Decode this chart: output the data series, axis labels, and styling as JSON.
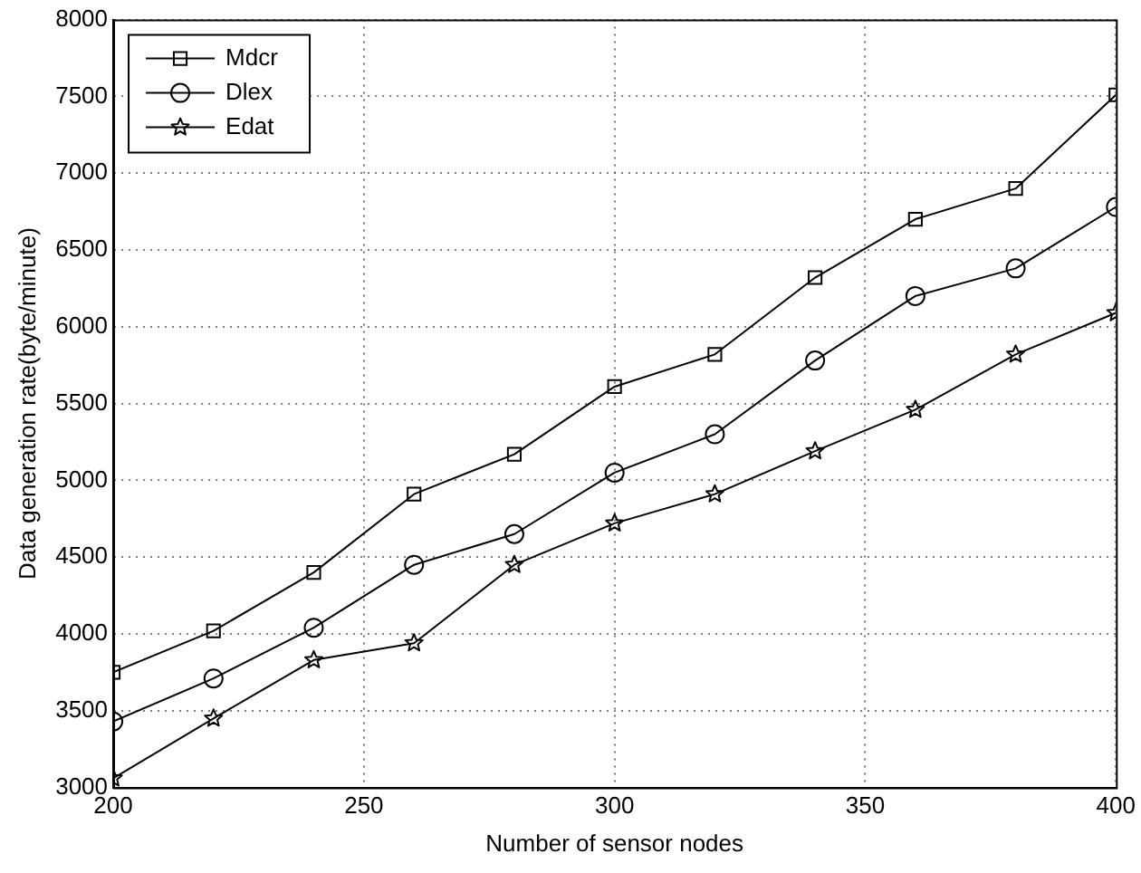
{
  "chart_data": {
    "type": "line",
    "xlabel": "Number of sensor nodes",
    "ylabel": "Data generation rate(byte/minute)",
    "x": [
      200,
      220,
      240,
      260,
      280,
      300,
      320,
      340,
      360,
      380,
      400
    ],
    "xlim": [
      200,
      400
    ],
    "xticks": [
      200,
      250,
      300,
      350,
      400
    ],
    "ylim": [
      3000,
      8000
    ],
    "yticks": [
      3000,
      3500,
      4000,
      4500,
      5000,
      5500,
      6000,
      6500,
      7000,
      7500,
      8000
    ],
    "grid": true,
    "legend": "top left",
    "line_style": "solid",
    "series": [
      {
        "name": "Mdcr",
        "color": "#000000",
        "marker": "square",
        "values": [
          3750,
          4020,
          4400,
          4910,
          5170,
          5610,
          5820,
          6320,
          6700,
          6900,
          7510
        ]
      },
      {
        "name": "Dlex",
        "color": "#000000",
        "marker": "circle",
        "values": [
          3430,
          3710,
          4040,
          4450,
          4650,
          5050,
          5300,
          5780,
          6200,
          6380,
          6780
        ]
      },
      {
        "name": "Edat",
        "color": "#000000",
        "marker": "star",
        "values": [
          3060,
          3450,
          3830,
          3940,
          4450,
          4720,
          4910,
          5190,
          5460,
          5820,
          6090
        ]
      }
    ]
  }
}
